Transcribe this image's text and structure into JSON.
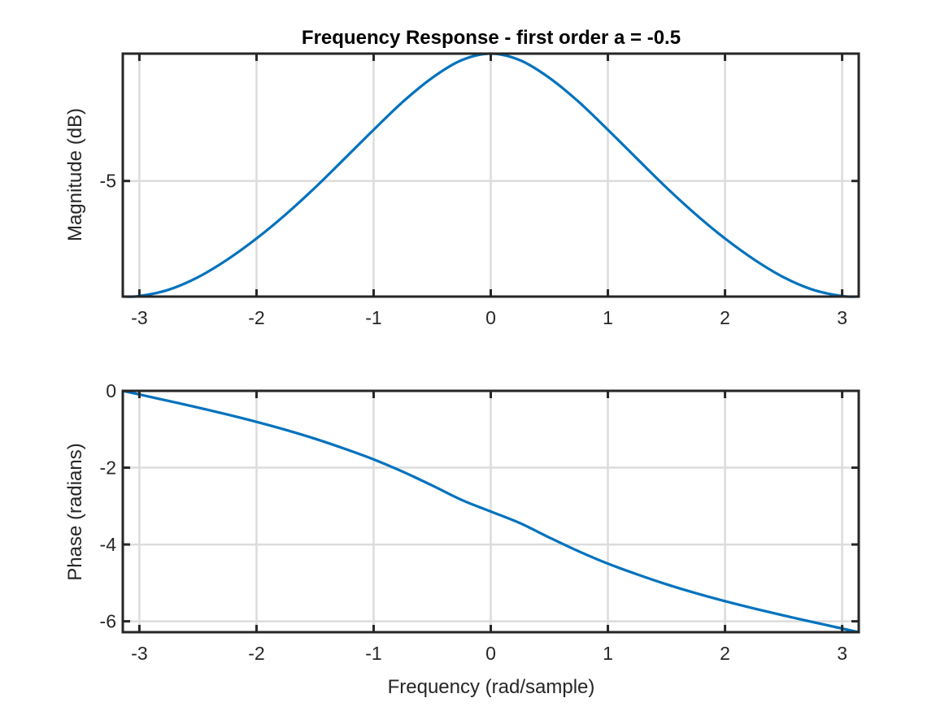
{
  "figure": {
    "title": "Frequency Response - first order a = -0.5",
    "xlabel": "Frequency (rad/sample)"
  },
  "chart_data": [
    {
      "type": "line",
      "title": "Frequency Response - first order a = -0.5",
      "xlabel": "",
      "ylabel": "Magnitude (dB)",
      "xlim": [
        -3.1416,
        3.1416
      ],
      "ylim": [
        -9.54,
        0
      ],
      "xticks": [
        -3,
        -2,
        -1,
        0,
        1,
        2,
        3
      ],
      "xtick_labels": [
        "-3",
        "-2",
        "-1",
        "0",
        "1",
        "2",
        "3"
      ],
      "yticks": [
        -5
      ],
      "ytick_labels": [
        "-5"
      ],
      "grid": true,
      "series": [
        {
          "color": "#0072BD",
          "x": [
            -3.1416,
            -3.0,
            -2.75,
            -2.5,
            -2.25,
            -2.0,
            -1.75,
            -1.5,
            -1.25,
            -1.0,
            -0.75,
            -0.5,
            -0.25,
            0.0,
            0.25,
            0.5,
            0.75,
            1.0,
            1.25,
            1.5,
            1.75,
            2.0,
            2.25,
            2.5,
            2.75,
            3.0,
            3.1416
          ],
          "y": [
            -9.54,
            -9.52,
            -9.27,
            -8.78,
            -8.09,
            -7.26,
            -6.31,
            -5.26,
            -4.13,
            -2.99,
            -1.89,
            -0.95,
            -0.26,
            0.0,
            -0.26,
            -0.95,
            -1.89,
            -2.99,
            -4.13,
            -5.26,
            -6.31,
            -7.26,
            -8.09,
            -8.78,
            -9.27,
            -9.52,
            -9.54
          ]
        }
      ]
    },
    {
      "type": "line",
      "title": "",
      "xlabel": "Frequency (rad/sample)",
      "ylabel": "Phase (radians)",
      "xlim": [
        -3.1416,
        3.1416
      ],
      "ylim": [
        -6.2832,
        0
      ],
      "xticks": [
        -3,
        -2,
        -1,
        0,
        1,
        2,
        3
      ],
      "xtick_labels": [
        "-3",
        "-2",
        "-1",
        "0",
        "1",
        "2",
        "3"
      ],
      "yticks": [
        0,
        -2,
        -4,
        -6
      ],
      "ytick_labels": [
        "0",
        "-2",
        "-4",
        "-6"
      ],
      "grid": true,
      "series": [
        {
          "color": "#0072BD",
          "x": [
            -3.1416,
            -3.0,
            -2.75,
            -2.5,
            -2.25,
            -2.0,
            -1.75,
            -1.5,
            -1.25,
            -1.0,
            -0.75,
            -0.5,
            -0.25,
            0.0,
            0.25,
            0.5,
            0.75,
            1.0,
            1.25,
            1.5,
            1.75,
            2.0,
            2.25,
            2.5,
            2.75,
            3.0,
            3.1416
          ],
          "y": [
            0.0,
            -0.095,
            -0.263,
            -0.435,
            -0.615,
            -0.807,
            -1.016,
            -1.247,
            -1.505,
            -1.784,
            -2.106,
            -2.464,
            -2.838,
            -3.1416,
            -3.445,
            -3.819,
            -4.177,
            -4.499,
            -4.778,
            -5.036,
            -5.267,
            -5.476,
            -5.668,
            -5.848,
            -6.02,
            -6.188,
            -6.2832
          ]
        }
      ]
    }
  ]
}
